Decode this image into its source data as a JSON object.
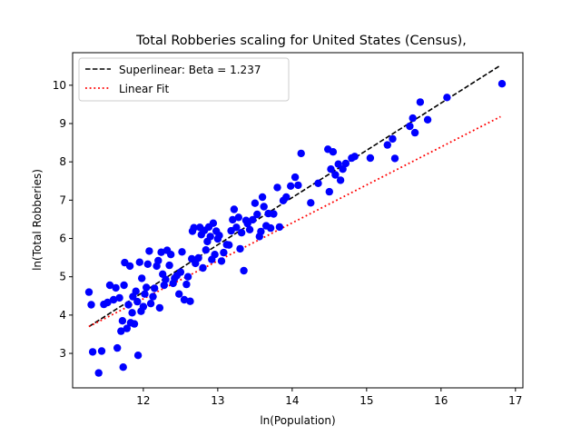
{
  "chart_data": {
    "type": "scatter",
    "title": "Total Robberies scaling for United States (Census),",
    "xlabel": "ln(Population)",
    "ylabel": "ln(Total Robberies)",
    "xlim": [
      11.05,
      17.1
    ],
    "ylim": [
      2.1,
      10.85
    ],
    "xticks": [
      12,
      13,
      14,
      15,
      16,
      17
    ],
    "yticks": [
      3,
      4,
      5,
      6,
      7,
      8,
      9,
      10
    ],
    "xtick_labels": [
      "12",
      "13",
      "14",
      "15",
      "16",
      "17"
    ],
    "ytick_labels": [
      "3",
      "4",
      "5",
      "6",
      "7",
      "8",
      "9",
      "10"
    ],
    "grid": false,
    "legend_position": "top-left",
    "point_color": "#0000ff",
    "series": [
      {
        "name": "Superlinear: Beta = 1.237",
        "style": "dashed",
        "color": "#000000",
        "x": [
          11.27,
          16.8
        ],
        "y": [
          3.7,
          10.52
        ]
      },
      {
        "name": "Linear Fit",
        "style": "dotted",
        "color": "#ff0000",
        "x": [
          11.27,
          16.8
        ],
        "y": [
          3.7,
          9.18
        ]
      }
    ],
    "points": [
      [
        11.27,
        4.6
      ],
      [
        11.3,
        4.27
      ],
      [
        11.32,
        3.04
      ],
      [
        11.4,
        2.49
      ],
      [
        11.44,
        3.06
      ],
      [
        11.47,
        4.28
      ],
      [
        11.52,
        4.33
      ],
      [
        11.55,
        4.78
      ],
      [
        11.6,
        4.4
      ],
      [
        11.63,
        4.71
      ],
      [
        11.65,
        3.14
      ],
      [
        11.68,
        4.45
      ],
      [
        11.7,
        3.58
      ],
      [
        11.72,
        3.85
      ],
      [
        11.73,
        2.64
      ],
      [
        11.74,
        4.78
      ],
      [
        11.75,
        5.37
      ],
      [
        11.78,
        3.65
      ],
      [
        11.8,
        4.27
      ],
      [
        11.82,
        5.28
      ],
      [
        11.83,
        3.8
      ],
      [
        11.85,
        4.06
      ],
      [
        11.86,
        4.48
      ],
      [
        11.88,
        3.77
      ],
      [
        11.9,
        4.62
      ],
      [
        11.92,
        4.35
      ],
      [
        11.93,
        2.95
      ],
      [
        11.95,
        5.38
      ],
      [
        11.97,
        4.1
      ],
      [
        11.98,
        4.96
      ],
      [
        12.0,
        4.22
      ],
      [
        12.02,
        4.55
      ],
      [
        12.04,
        4.72
      ],
      [
        12.06,
        5.33
      ],
      [
        12.08,
        5.67
      ],
      [
        12.1,
        4.3
      ],
      [
        12.13,
        4.48
      ],
      [
        12.15,
        4.7
      ],
      [
        12.18,
        5.28
      ],
      [
        12.2,
        5.42
      ],
      [
        12.22,
        4.19
      ],
      [
        12.24,
        5.64
      ],
      [
        12.26,
        5.07
      ],
      [
        12.28,
        4.78
      ],
      [
        12.3,
        4.93
      ],
      [
        12.32,
        5.69
      ],
      [
        12.35,
        5.3
      ],
      [
        12.37,
        5.58
      ],
      [
        12.4,
        4.83
      ],
      [
        12.42,
        4.96
      ],
      [
        12.45,
        5.03
      ],
      [
        12.48,
        4.55
      ],
      [
        12.5,
        5.12
      ],
      [
        12.52,
        5.65
      ],
      [
        12.55,
        4.4
      ],
      [
        12.58,
        4.8
      ],
      [
        12.6,
        5.0
      ],
      [
        12.63,
        4.36
      ],
      [
        12.65,
        5.47
      ],
      [
        12.66,
        6.19
      ],
      [
        12.68,
        6.28
      ],
      [
        12.7,
        5.35
      ],
      [
        12.74,
        5.49
      ],
      [
        12.76,
        6.29
      ],
      [
        12.78,
        6.1
      ],
      [
        12.8,
        5.23
      ],
      [
        12.82,
        6.21
      ],
      [
        12.84,
        5.7
      ],
      [
        12.86,
        5.92
      ],
      [
        12.88,
        6.3
      ],
      [
        12.9,
        6.05
      ],
      [
        12.92,
        5.45
      ],
      [
        12.94,
        6.4
      ],
      [
        12.96,
        5.58
      ],
      [
        12.98,
        6.19
      ],
      [
        13.0,
        5.99
      ],
      [
        13.02,
        6.08
      ],
      [
        13.05,
        5.41
      ],
      [
        13.08,
        5.63
      ],
      [
        13.12,
        5.84
      ],
      [
        13.15,
        5.83
      ],
      [
        13.18,
        6.2
      ],
      [
        13.2,
        6.49
      ],
      [
        13.22,
        6.76
      ],
      [
        13.25,
        6.29
      ],
      [
        13.28,
        6.55
      ],
      [
        13.3,
        5.73
      ],
      [
        13.32,
        6.15
      ],
      [
        13.35,
        5.16
      ],
      [
        13.38,
        6.47
      ],
      [
        13.4,
        6.39
      ],
      [
        13.43,
        6.23
      ],
      [
        13.47,
        6.49
      ],
      [
        13.5,
        6.92
      ],
      [
        13.53,
        6.63
      ],
      [
        13.56,
        6.05
      ],
      [
        13.58,
        6.18
      ],
      [
        13.6,
        7.08
      ],
      [
        13.62,
        6.83
      ],
      [
        13.65,
        6.33
      ],
      [
        13.68,
        6.65
      ],
      [
        13.71,
        6.27
      ],
      [
        13.75,
        6.64
      ],
      [
        13.8,
        7.33
      ],
      [
        13.83,
        6.3
      ],
      [
        13.88,
        6.99
      ],
      [
        13.92,
        7.08
      ],
      [
        13.98,
        7.37
      ],
      [
        14.04,
        7.6
      ],
      [
        14.08,
        7.39
      ],
      [
        14.12,
        8.22
      ],
      [
        14.25,
        6.93
      ],
      [
        14.35,
        7.44
      ],
      [
        14.48,
        8.33
      ],
      [
        14.5,
        7.22
      ],
      [
        14.52,
        7.81
      ],
      [
        14.55,
        8.26
      ],
      [
        14.58,
        7.66
      ],
      [
        14.62,
        7.94
      ],
      [
        14.65,
        7.52
      ],
      [
        14.68,
        7.81
      ],
      [
        14.72,
        7.96
      ],
      [
        14.8,
        8.1
      ],
      [
        14.84,
        8.14
      ],
      [
        15.05,
        8.1
      ],
      [
        15.28,
        8.44
      ],
      [
        15.35,
        8.6
      ],
      [
        15.38,
        8.09
      ],
      [
        15.58,
        8.93
      ],
      [
        15.62,
        9.14
      ],
      [
        15.65,
        8.76
      ],
      [
        15.72,
        9.56
      ],
      [
        15.82,
        9.1
      ],
      [
        16.08,
        9.68
      ],
      [
        16.82,
        10.04
      ]
    ]
  }
}
